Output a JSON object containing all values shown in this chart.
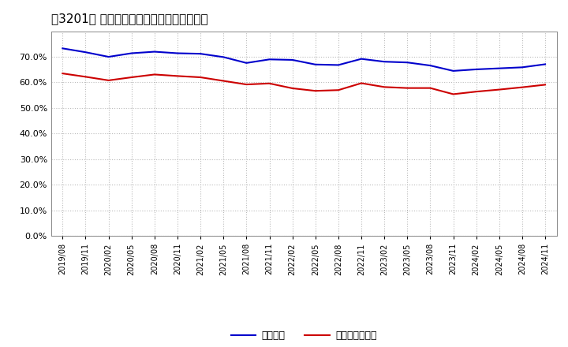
{
  "title": "［3201］ 固定比率、固定長期適合率の推移",
  "legend_labels": [
    "固定比率",
    "固定長期適合率"
  ],
  "line_colors": [
    "#0000cc",
    "#cc0000"
  ],
  "background_color": "#ffffff",
  "plot_bg_color": "#ffffff",
  "grid_color": "#bbbbbb",
  "ylim": [
    0.0,
    0.8
  ],
  "yticks": [
    0.0,
    0.1,
    0.2,
    0.3,
    0.4,
    0.5,
    0.6,
    0.7
  ],
  "x_labels": [
    "2019/08",
    "2019/11",
    "2020/02",
    "2020/05",
    "2020/08",
    "2020/11",
    "2021/02",
    "2021/05",
    "2021/08",
    "2021/11",
    "2022/02",
    "2022/05",
    "2022/08",
    "2022/11",
    "2023/02",
    "2023/05",
    "2023/08",
    "2023/11",
    "2024/02",
    "2024/05",
    "2024/08",
    "2024/11"
  ],
  "series1": [
    0.733,
    0.718,
    0.7,
    0.714,
    0.72,
    0.714,
    0.712,
    0.699,
    0.676,
    0.69,
    0.688,
    0.67,
    0.668,
    0.692,
    0.681,
    0.678,
    0.666,
    0.645,
    0.651,
    0.655,
    0.659,
    0.671
  ],
  "series2": [
    0.635,
    0.622,
    0.608,
    0.62,
    0.631,
    0.625,
    0.62,
    0.606,
    0.592,
    0.596,
    0.577,
    0.567,
    0.57,
    0.597,
    0.582,
    0.578,
    0.578,
    0.554,
    0.564,
    0.572,
    0.581,
    0.591
  ]
}
